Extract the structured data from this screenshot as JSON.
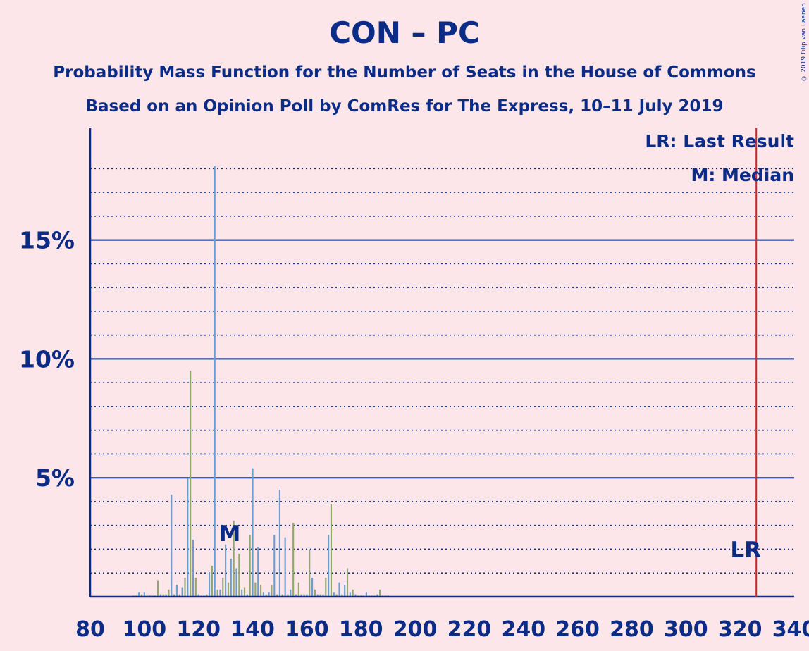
{
  "title": "CON – PC",
  "subtitle1": "Probability Mass Function for the Number of Seats in the House of Commons",
  "subtitle2": "Based on an Opinion Poll by ComRes for The Express, 10–11 July 2019",
  "copyright": "© 2019 Filip van Laenen",
  "legend": {
    "last_result": "LR: Last Result",
    "median": "M: Median"
  },
  "colors": {
    "background": "#fde6ea",
    "text": "#0a2b86",
    "bar_green": "#8fa86c",
    "bar_blue": "#6a9ed0",
    "last_result_line": "#d0202e"
  },
  "chart_data": {
    "type": "bar",
    "xlim": [
      80,
      340
    ],
    "ylim": [
      0,
      19.5
    ],
    "x_ticks": [
      80,
      100,
      120,
      140,
      160,
      180,
      200,
      220,
      240,
      260,
      280,
      300,
      320,
      340
    ],
    "y_ticks": [
      {
        "value": 5,
        "label": "5%"
      },
      {
        "value": 10,
        "label": "10%"
      },
      {
        "value": 15,
        "label": "15%"
      }
    ],
    "minor_gridlines": [
      1,
      2,
      3,
      4,
      6,
      7,
      8,
      9,
      11,
      12,
      13,
      14,
      16,
      17,
      18
    ],
    "median": {
      "seat": 131,
      "label": "M"
    },
    "last_result": {
      "seat": 326,
      "label": "LR"
    },
    "x": [
      96,
      97,
      98,
      99,
      100,
      101,
      102,
      103,
      104,
      105,
      106,
      107,
      108,
      109,
      110,
      111,
      112,
      113,
      114,
      115,
      116,
      117,
      118,
      119,
      120,
      121,
      122,
      123,
      124,
      125,
      126,
      127,
      128,
      129,
      130,
      131,
      132,
      133,
      134,
      135,
      136,
      137,
      138,
      139,
      140,
      141,
      142,
      143,
      144,
      145,
      146,
      147,
      148,
      149,
      150,
      151,
      152,
      153,
      154,
      155,
      156,
      157,
      158,
      159,
      160,
      161,
      162,
      163,
      164,
      165,
      166,
      167,
      168,
      169,
      170,
      171,
      172,
      173,
      174,
      175,
      176,
      177,
      178,
      179,
      180,
      181,
      182,
      183,
      184,
      185,
      186,
      187,
      188,
      189,
      190
    ],
    "values": [
      0.05,
      0.05,
      0.2,
      0.1,
      0.2,
      0.05,
      0.05,
      0.05,
      0.05,
      0.7,
      0.1,
      0.1,
      0.1,
      0.3,
      4.3,
      0.1,
      0.5,
      0.1,
      0.4,
      0.8,
      5.0,
      9.5,
      2.4,
      0.8,
      0.1,
      0.05,
      0.05,
      0.1,
      1.0,
      1.3,
      18.1,
      0.3,
      0.3,
      0.8,
      2.2,
      0.6,
      1.6,
      3.2,
      1.2,
      1.8,
      0.3,
      0.4,
      0.1,
      2.6,
      5.4,
      0.6,
      2.1,
      0.5,
      0.2,
      0.1,
      0.2,
      0.5,
      2.6,
      0.1,
      4.5,
      0.1,
      2.5,
      0.1,
      0.3,
      3.1,
      0.1,
      0.6,
      0.1,
      0.1,
      0.1,
      2.0,
      0.8,
      0.3,
      0.1,
      0.1,
      0.1,
      0.8,
      2.6,
      3.9,
      0.2,
      0.1,
      0.6,
      0.1,
      0.5,
      1.2,
      0.2,
      0.3,
      0.1,
      0.05,
      0.05,
      0.05,
      0.2,
      0.05,
      0.05,
      0.05,
      0.1,
      0.3,
      0.05,
      0.05,
      0.05
    ]
  }
}
